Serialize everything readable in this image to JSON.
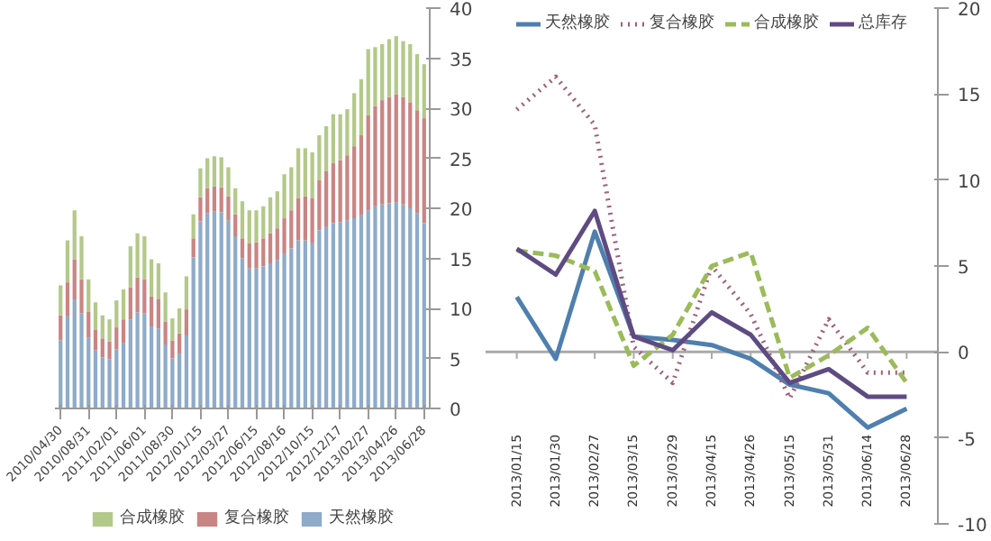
{
  "chart_data": [
    {
      "type": "bar",
      "stacked": true,
      "legend": "bottom",
      "grid": false,
      "categories": [
        "2010/04/30",
        null,
        null,
        null,
        "2010/08/31",
        null,
        null,
        null,
        "2011/02/01",
        null,
        null,
        null,
        "2011/06/01",
        null,
        null,
        null,
        "2011/08/30",
        null,
        null,
        null,
        "2012/01/15",
        null,
        null,
        null,
        "2012/03/27",
        null,
        null,
        null,
        "2012/06/15",
        null,
        null,
        null,
        "2012/08/16",
        null,
        null,
        null,
        "2012/10/15",
        null,
        null,
        null,
        "2012/12/17",
        null,
        null,
        null,
        "2013/02/27",
        null,
        null,
        null,
        "2013/04/26",
        null,
        null,
        null,
        "2013/06/28"
      ],
      "ylim": [
        0,
        40
      ],
      "yticks": [
        0,
        5,
        10,
        15,
        20,
        25,
        30,
        35,
        40
      ],
      "series": [
        {
          "name": "天然橡胶",
          "color": "#8eabc9",
          "values": [
            6.8,
            9.2,
            10.9,
            9.5,
            7.1,
            5.8,
            5.1,
            4.9,
            5.9,
            6.5,
            8.9,
            9.6,
            9.5,
            8.2,
            8.0,
            6.4,
            5.0,
            5.5,
            7.3,
            15.1,
            18.7,
            19.5,
            19.7,
            19.6,
            18.8,
            17.2,
            15.0,
            14.0,
            14.0,
            14.2,
            14.5,
            14.8,
            15.5,
            16.0,
            16.8,
            16.8,
            16.5,
            17.8,
            18.2,
            18.5,
            18.6,
            18.8,
            19.0,
            19.3,
            19.8,
            20.2,
            20.4,
            20.5,
            20.6,
            20.4,
            20.0,
            19.5,
            18.5
          ]
        },
        {
          "name": "复合橡胶",
          "color": "#c98584",
          "values": [
            2.5,
            3.4,
            4.0,
            3.4,
            2.6,
            2.1,
            1.9,
            1.8,
            2.2,
            2.4,
            3.2,
            3.5,
            3.4,
            3.0,
            2.9,
            2.3,
            1.8,
            2.0,
            2.6,
            1.9,
            2.4,
            2.5,
            2.5,
            2.5,
            2.4,
            2.2,
            2.0,
            2.5,
            2.6,
            2.8,
            3.0,
            3.2,
            3.5,
            3.8,
            4.2,
            4.4,
            4.5,
            5.0,
            5.5,
            6.0,
            6.2,
            6.5,
            7.2,
            8.0,
            9.5,
            10.0,
            10.4,
            10.6,
            10.8,
            10.7,
            10.6,
            10.3,
            10.5
          ]
        },
        {
          "name": "合成橡胶",
          "color": "#b3c98a",
          "values": [
            3.0,
            4.2,
            4.9,
            4.3,
            3.2,
            2.7,
            2.3,
            2.2,
            2.7,
            3.0,
            4.1,
            4.4,
            4.3,
            3.7,
            3.6,
            2.9,
            2.2,
            2.5,
            3.3,
            2.4,
            2.9,
            3.0,
            3.0,
            3.0,
            2.9,
            2.6,
            3.7,
            3.3,
            3.2,
            3.2,
            3.6,
            3.7,
            4.4,
            4.3,
            5.0,
            4.8,
            4.6,
            4.5,
            4.5,
            4.9,
            4.6,
            4.6,
            5.3,
            5.6,
            6.6,
            5.9,
            5.6,
            5.8,
            5.8,
            5.6,
            5.8,
            5.6,
            5.4
          ]
        }
      ]
    },
    {
      "type": "line",
      "legend": "top",
      "grid": false,
      "categories": [
        "2013/01/15",
        "2013/01/30",
        "2013/02/27",
        "2013/03/15",
        "2013/03/29",
        "2013/04/15",
        "2013/04/26",
        "2013/05/15",
        "2013/05/31",
        "2013/06/14",
        "2013/06/28"
      ],
      "ylim": [
        -10,
        20
      ],
      "yticks": [
        -10,
        -5,
        0,
        5,
        10,
        15,
        20
      ],
      "ref_lines": [
        {
          "axis": "y",
          "value": 0,
          "color": "#aaaaaa"
        }
      ],
      "series": [
        {
          "name": "天然橡胶",
          "color": "#4f7fae",
          "line_style": "solid",
          "values": [
            3.2,
            -0.4,
            7.0,
            0.9,
            0.7,
            0.4,
            -0.4,
            -1.9,
            -2.4,
            -4.4,
            -3.3
          ]
        },
        {
          "name": "复合橡胶",
          "color": "#a0607a",
          "line_style": "dotted",
          "values": [
            14.1,
            16.0,
            13.2,
            0.3,
            -1.8,
            5.0,
            2.2,
            -2.7,
            1.9,
            -1.2,
            -1.2
          ]
        },
        {
          "name": "合成橡胶",
          "color": "#9bbb59",
          "line_style": "dashed",
          "values": [
            5.9,
            5.6,
            4.7,
            -0.8,
            1.0,
            5.0,
            5.8,
            -1.5,
            -0.2,
            1.4,
            -1.8
          ]
        },
        {
          "name": "总库存",
          "color": "#5e4b82",
          "line_style": "solid",
          "values": [
            6.0,
            4.5,
            8.2,
            0.9,
            0.1,
            2.3,
            1.0,
            -1.8,
            -1.0,
            -2.6,
            -2.6
          ]
        }
      ]
    }
  ]
}
